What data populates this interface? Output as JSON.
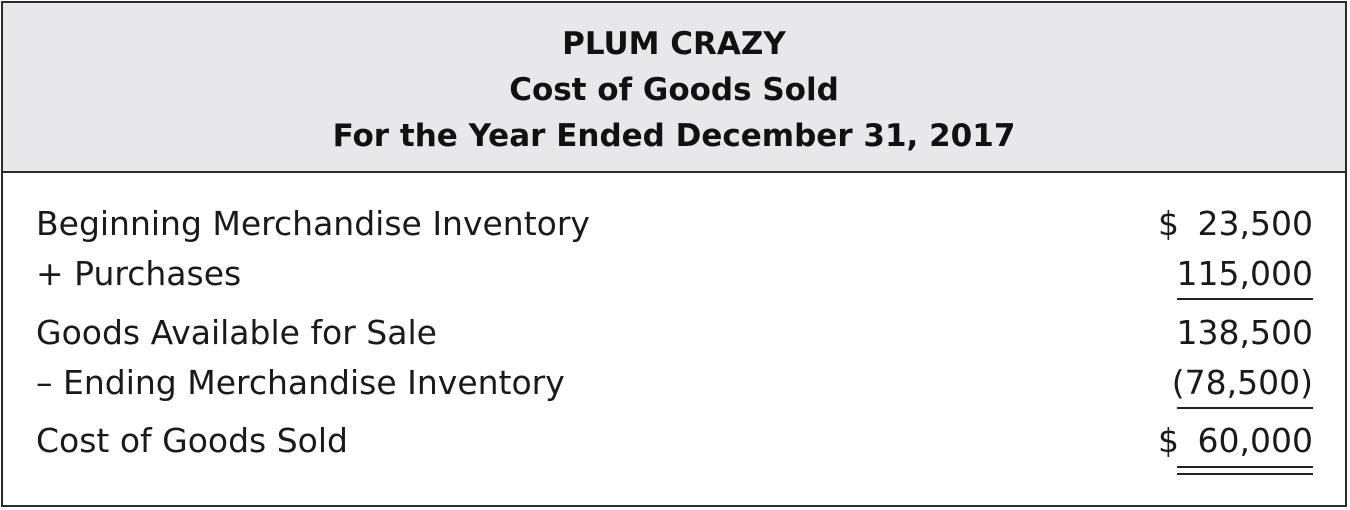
{
  "header": {
    "company": "PLUM CRAZY",
    "statement": "Cost of Goods Sold",
    "period": "For the Year Ended December 31, 2017"
  },
  "rows": [
    {
      "label": "Beginning Merchandise Inventory",
      "currency": "$",
      "amount": "23,500"
    },
    {
      "label": "+ Purchases",
      "currency": "",
      "amount": "115,000"
    },
    {
      "label": "Goods Available for Sale",
      "currency": "",
      "amount": "138,500"
    },
    {
      "label": "– Ending Merchandise Inventory",
      "currency": "",
      "amount": "(78,500)"
    },
    {
      "label": "Cost of Goods Sold",
      "currency": "$",
      "amount": "60,000"
    }
  ]
}
